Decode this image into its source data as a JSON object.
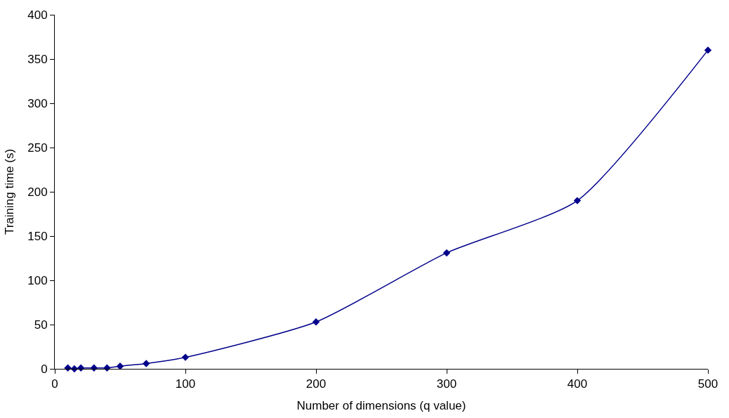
{
  "chart_data": {
    "type": "line",
    "xlabel": "Number of dimensions (q value)",
    "ylabel": "Training time (s)",
    "x": [
      10,
      15,
      20,
      30,
      40,
      50,
      70,
      100,
      200,
      300,
      400,
      500
    ],
    "series": [
      {
        "color": "#00008b",
        "values": [
          1,
          0,
          1,
          1,
          1,
          3,
          6,
          13,
          53,
          131,
          190,
          360
        ]
      }
    ],
    "xlim": [
      0,
      500
    ],
    "xticks": [
      0,
      100,
      200,
      300,
      400,
      500
    ],
    "ylim": [
      0,
      400
    ],
    "yticks": [
      0,
      50,
      100,
      150,
      200,
      250,
      300,
      350,
      400
    ],
    "marker": "diamond",
    "line_style": "solid"
  }
}
